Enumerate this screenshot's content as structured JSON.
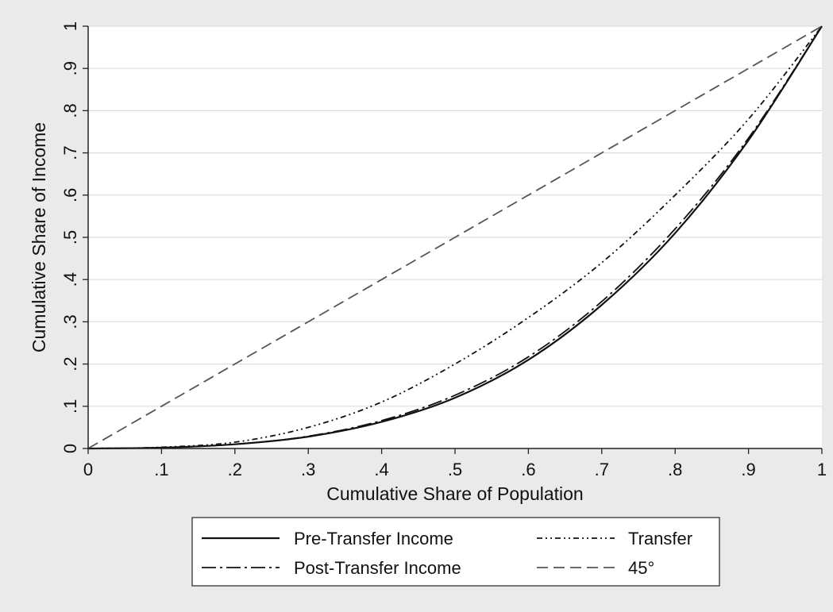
{
  "chart_data": {
    "type": "line",
    "xlabel": "Cumulative Share of Population",
    "ylabel": "Cumulative Share of Income",
    "xlim": [
      0,
      1
    ],
    "ylim": [
      0,
      1
    ],
    "x_ticks": [
      "0",
      ".1",
      ".2",
      ".3",
      ".4",
      ".5",
      ".6",
      ".7",
      ".8",
      ".9",
      "1"
    ],
    "y_ticks": [
      "0",
      ".1",
      ".2",
      ".3",
      ".4",
      ".5",
      ".6",
      ".7",
      ".8",
      ".9",
      "1"
    ],
    "grid": "horizontal",
    "legend_position": "bottom",
    "x": [
      0,
      0.1,
      0.2,
      0.3,
      0.4,
      0.5,
      0.6,
      0.7,
      0.8,
      0.9,
      1.0
    ],
    "series": [
      {
        "name": "Pre-Transfer Income",
        "style": "solid",
        "values": [
          0,
          0.002,
          0.01,
          0.028,
          0.063,
          0.12,
          0.21,
          0.34,
          0.51,
          0.73,
          1.0
        ]
      },
      {
        "name": "Transfer",
        "style": "dash-dot-dot",
        "values": [
          0,
          0.003,
          0.015,
          0.05,
          0.11,
          0.2,
          0.31,
          0.44,
          0.6,
          0.78,
          1.0
        ]
      },
      {
        "name": "Post-Transfer Income",
        "style": "long-dash-dot",
        "values": [
          0,
          0.002,
          0.01,
          0.029,
          0.066,
          0.126,
          0.217,
          0.348,
          0.52,
          0.735,
          1.0
        ]
      },
      {
        "name": "45°",
        "style": "dashed",
        "values": [
          0,
          0.1,
          0.2,
          0.3,
          0.4,
          0.5,
          0.6,
          0.7,
          0.8,
          0.9,
          1.0
        ]
      }
    ]
  },
  "colors": {
    "background": "#eaeaea",
    "plot_area": "#ffffff",
    "gridline": "#dddddd",
    "axis": "#222222",
    "line_main": "#111111",
    "line_45": "#555555"
  }
}
